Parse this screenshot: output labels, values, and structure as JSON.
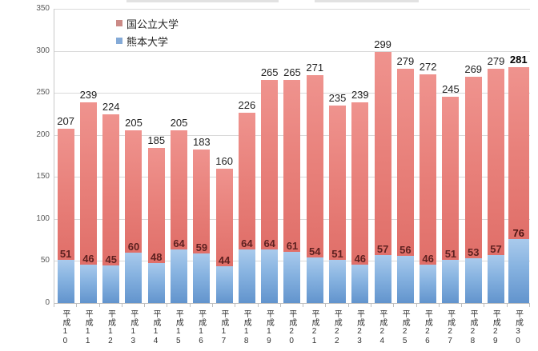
{
  "page": {
    "background": "#ffffff"
  },
  "legend": {
    "items": [
      {
        "label": "国公立大学",
        "marker_color": "#cb8a86"
      },
      {
        "label": "熊本大学",
        "marker_color": "#84aad7"
      }
    ]
  },
  "chart_data": {
    "type": "bar",
    "stacked": true,
    "title": "",
    "categories": [
      "平成10",
      "平成11",
      "平成12",
      "平成13",
      "平成14",
      "平成15",
      "平成16",
      "平成17",
      "平成18",
      "平成19",
      "平成20",
      "平成21",
      "平成22",
      "平成23",
      "平成24",
      "平成25",
      "平成26",
      "平成27",
      "平成28",
      "平成29",
      "平成30"
    ],
    "series": [
      {
        "name": "国公立大学",
        "role": "stack-total-labelled-at-bar-top",
        "bar_color_top": "#ef938e",
        "bar_color_bottom": "#e06f69",
        "label_color": "#1f1f1f",
        "values": [
          207,
          239,
          224,
          205,
          185,
          205,
          183,
          160,
          226,
          265,
          265,
          271,
          235,
          239,
          299,
          279,
          272,
          245,
          269,
          279,
          281
        ]
      },
      {
        "name": "熊本大学",
        "role": "bottom-stack-segment",
        "bar_color_top": "#a9caec",
        "bar_color_bottom": "#6294cd",
        "label_color": "#5e2120",
        "values": [
          51,
          46,
          45,
          60,
          48,
          64,
          59,
          44,
          64,
          64,
          61,
          54,
          51,
          46,
          57,
          56,
          46,
          51,
          53,
          57,
          76
        ]
      }
    ],
    "ylim": [
      0,
      350
    ],
    "yticks": [
      0,
      50,
      100,
      150,
      200,
      250,
      300,
      350
    ],
    "grid": true,
    "legend_position": "top-left-inside",
    "emphasized_category_index": 20,
    "xlabel": "",
    "ylabel": ""
  }
}
